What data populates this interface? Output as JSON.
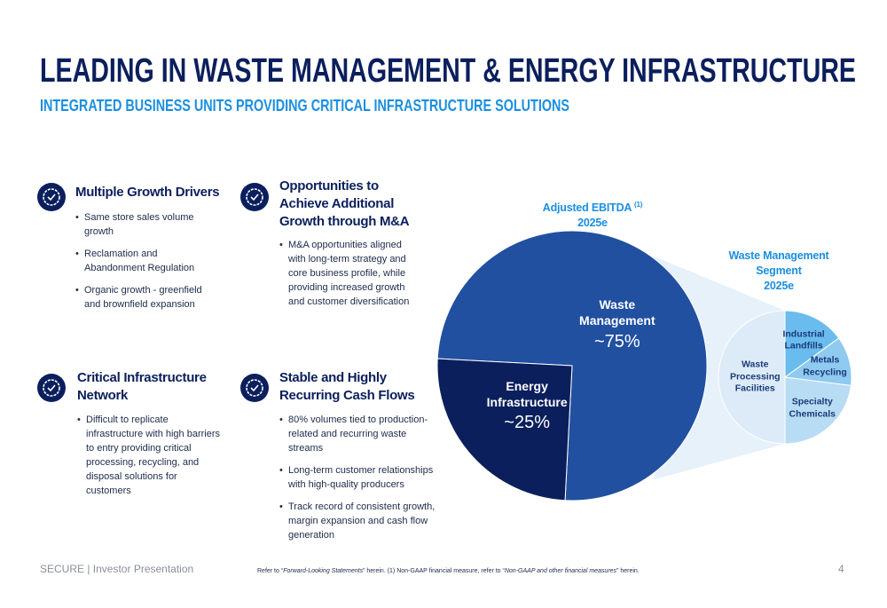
{
  "header": {
    "title": "LEADING IN WASTE MANAGEMENT & ENERGY INFRASTRUCTURE",
    "subtitle": "INTEGRATED BUSINESS UNITS PROVIDING CRITICAL INFRASTRUCTURE SOLUTIONS"
  },
  "blocks": [
    {
      "heading": "Multiple Growth Drivers",
      "bullets": [
        "Same store sales volume growth",
        "Reclamation and Abandonment Regulation",
        "Organic growth - greenfield and brownfield expansion"
      ]
    },
    {
      "heading": "Opportunities to Achieve Additional Growth through M&A",
      "bullets": [
        "M&A opportunities aligned with long-term strategy and core business profile, while providing increased growth and customer diversification"
      ]
    },
    {
      "heading": "Critical Infrastructure Network",
      "bullets": [
        "Difficult to replicate infrastructure with high barriers to entry providing critical processing, recycling, and disposal solutions for customers"
      ]
    },
    {
      "heading": "Stable and Highly Recurring Cash Flows",
      "bullets": [
        "80% volumes tied to production-related and recurring waste streams",
        "Long-term customer relationships with high-quality producers",
        "Track record of consistent growth, margin expansion and cash flow generation"
      ]
    }
  ],
  "chart_data": [
    {
      "type": "pie",
      "title": "Adjusted EBITDA",
      "title_note": "(1)",
      "subtitle": "2025e",
      "categories": [
        "Waste Management",
        "Energy Infrastructure"
      ],
      "values": [
        75,
        25
      ],
      "value_labels": [
        "~75%",
        "~25%"
      ],
      "colors": [
        "#2150a0",
        "#0b1f5c"
      ]
    },
    {
      "type": "pie",
      "title": "Waste Management Segment",
      "subtitle": "2025e",
      "categories": [
        "Industrial Landfills",
        "Metals Recycling",
        "Specialty Chemicals",
        "Waste Processing Facilities"
      ],
      "values": [
        15,
        12,
        23,
        50
      ],
      "colors": [
        "#6bbcee",
        "#8fcaf0",
        "#b8dcf4",
        "#dcebf7"
      ]
    }
  ],
  "footer": {
    "left": "SECURE | Investor Presentation",
    "footnote": [
      "Refer to “",
      "Forward-Looking Statements",
      "” herein. (1) Non-GAAP financial measure, refer to “",
      "Non-GAAP and other financial measures",
      "” herein."
    ],
    "page": "4"
  }
}
